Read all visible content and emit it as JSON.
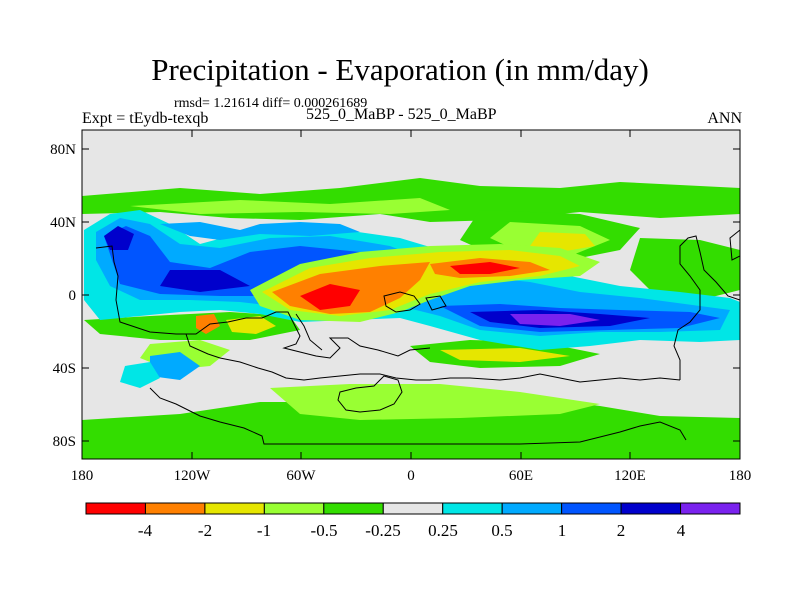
{
  "title": "Precipitation - Evaporation (in mm/day)",
  "stats_text": "rmsd= 1.21614 diff= 0.000261689",
  "expt_label": "Expt = tEydb-texqb",
  "case_label": "525_0_MaBP - 525_0_MaBP",
  "season": "ANN",
  "axes": {
    "lon_ticks": [
      "180",
      "120W",
      "60W",
      "0",
      "60E",
      "120E",
      "180"
    ],
    "lat_ticks": [
      "80N",
      "40N",
      "0",
      "40S",
      "80S"
    ]
  },
  "colorbar": {
    "labels": [
      "-4",
      "-2",
      "-1",
      "-0.5",
      "-0.25",
      "0.25",
      "0.5",
      "1",
      "2",
      "4"
    ],
    "colors": [
      "#ff0000",
      "#ff8000",
      "#e6e600",
      "#99ff33",
      "#33dd00",
      "#e6e6e6",
      "#00e6e6",
      "#00aaff",
      "#0055ff",
      "#0000cc",
      "#7a22ee"
    ]
  },
  "colors": {
    "background_field": "#e6e6e6",
    "coastline": "#000000"
  }
}
